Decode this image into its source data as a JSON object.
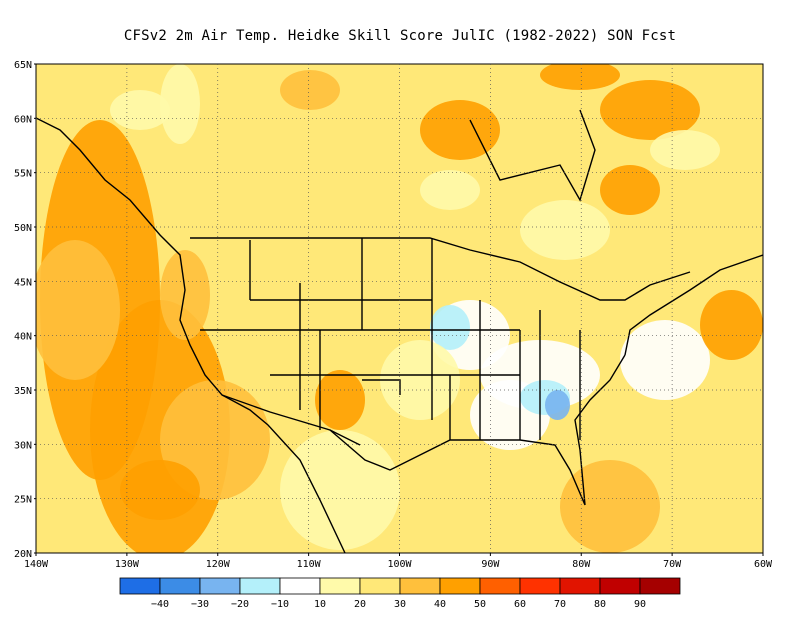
{
  "title": "CFSv2  2m Air Temp. Heidke Skill Score JulIC (1982-2022) SON Fcst",
  "latitude_labels": [
    "65N",
    "60N",
    "55N",
    "50N",
    "45N",
    "40N",
    "35N",
    "30N",
    "25N",
    "20N"
  ],
  "longitude_labels": [
    "140W",
    "130W",
    "120W",
    "110W",
    "100W",
    "90W",
    "80W",
    "70W",
    "60W"
  ],
  "colorbar": {
    "labels": [
      "−40",
      "−30",
      "−20",
      "−10",
      "10",
      "20",
      "30",
      "40",
      "50",
      "60",
      "70",
      "80",
      "90"
    ],
    "colors": [
      "#1e6ee6",
      "#3c8ce6",
      "#78b4f0",
      "#b4f0fa",
      "#ffffff",
      "#fffaaa",
      "#ffe878",
      "#ffc03c",
      "#ffa000",
      "#ff6000",
      "#ff3200",
      "#e11400",
      "#c00000",
      "#a50000"
    ]
  },
  "map_colors": {
    "land_base": "#ffe878",
    "light": "#fffaaa",
    "orange": "#ffc03c",
    "deep": "#ffa000",
    "white": "#ffffff",
    "cyan": "#b4f0fa",
    "blue": "#78b4f0"
  }
}
